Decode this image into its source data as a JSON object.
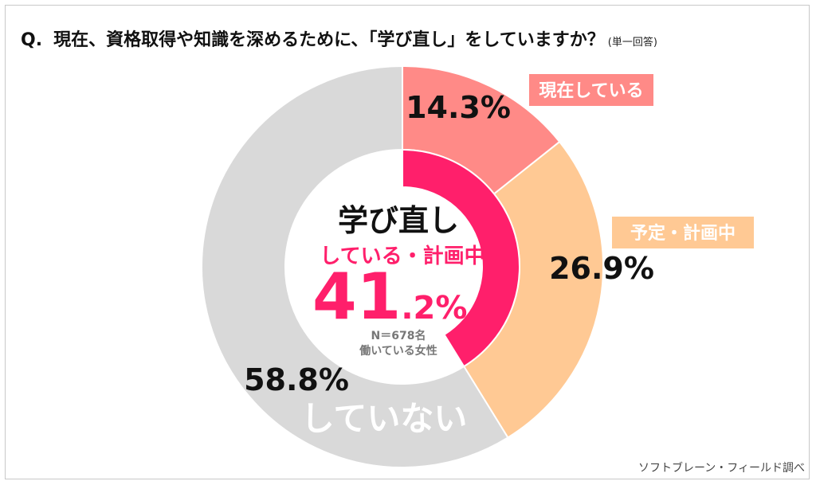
{
  "title": {
    "prefix": "Q.",
    "question": "現在、資格取得や知識を深めるために、「学び直し」をしていますか？",
    "note": "(単一回答)"
  },
  "chart_data": {
    "type": "pie",
    "style": "donut",
    "slices": [
      {
        "label": "現在している",
        "value": 14.3,
        "display": "14.3%",
        "color": "#ff8a87",
        "label_bg": "#ff8a87",
        "label_color": "#ffffff",
        "pct_color": "#111111"
      },
      {
        "label": "予定・計画中",
        "value": 26.9,
        "display": "26.9%",
        "color": "#ffc994",
        "label_bg": "#ffc994",
        "label_color": "#ffffff",
        "pct_color": "#111111"
      },
      {
        "label": "していない",
        "value": 58.8,
        "display": "58.8%",
        "color": "#d9d9d9",
        "label_bg": "",
        "label_color": "#ffffff",
        "pct_color": "#111111"
      }
    ],
    "inner_ring": {
      "value": 41.2,
      "color": "#ff1f6b"
    },
    "center": {
      "line1": "学び直し",
      "line2": "している・計画中",
      "big_int": "41",
      "big_dec": ".2%",
      "n": "N＝678名",
      "sub": "働いている女性"
    }
  },
  "source": "ソフトブレーン・フィールド調べ"
}
